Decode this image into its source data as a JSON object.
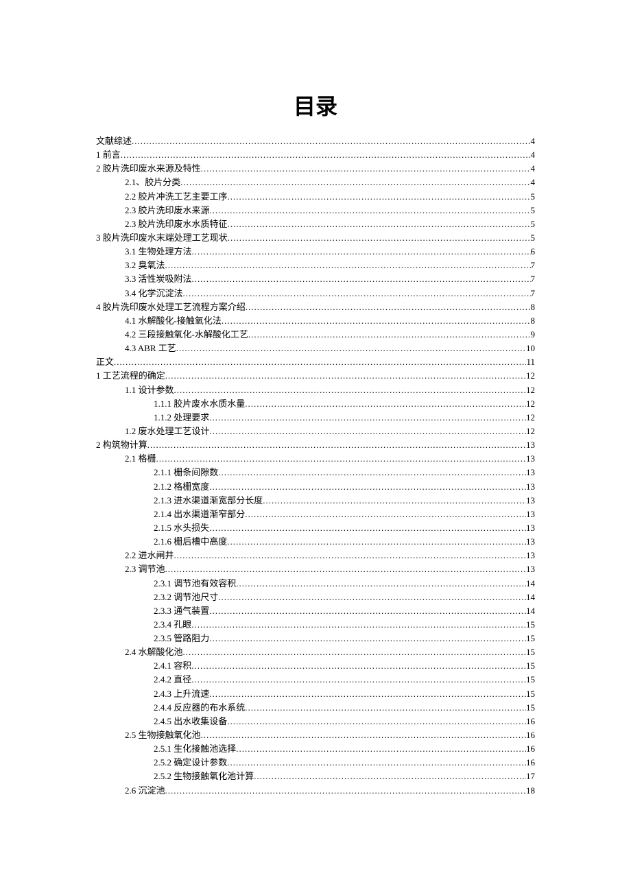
{
  "title": "目录",
  "dots": ".................................................................................................................................................................................................................................",
  "entries": [
    {
      "label": "文献综述",
      "page": "4",
      "indent": 0
    },
    {
      "label": "1 前言",
      "page": "4",
      "indent": 0
    },
    {
      "label": "2 胶片洗印废水来源及特性",
      "page": "4",
      "indent": 0
    },
    {
      "label": "2.1、胶片分类",
      "page": "4",
      "indent": 1
    },
    {
      "label": "2.2 胶片冲洗工艺主要工序",
      "page": "5",
      "indent": 1
    },
    {
      "label": "2.3 胶片洗印废水来源",
      "page": "5",
      "indent": 1
    },
    {
      "label": "2.3 胶片洗印废水水质特征",
      "page": "5",
      "indent": 1
    },
    {
      "label": "3 胶片洗印废水末端处理工艺现状",
      "page": "5",
      "indent": 0
    },
    {
      "label": "3.1 生物处理方法",
      "page": "6",
      "indent": 1
    },
    {
      "label": "3.2 臭氧法",
      "page": "7",
      "indent": 1
    },
    {
      "label": "3.3 活性炭吸附法",
      "page": "7",
      "indent": 1
    },
    {
      "label": "3.4 化学沉淀法",
      "page": "7",
      "indent": 1
    },
    {
      "label": "4  胶片洗印废水处理工艺流程方案介绍",
      "page": "8",
      "indent": 0
    },
    {
      "label": "4.1  水解酸化-接触氧化法 ",
      "page": "8",
      "indent": 1
    },
    {
      "label": "4.2 三段接触氧化-水解酸化工艺 ",
      "page": "9",
      "indent": 1
    },
    {
      "label": "4.3 ABR 工艺 ",
      "page": "10",
      "indent": 1
    },
    {
      "label": "正文",
      "page": "11",
      "indent": 0
    },
    {
      "label": "1 工艺流程的确定",
      "page": "12",
      "indent": 0
    },
    {
      "label": "1.1 设计参数",
      "page": "12",
      "indent": 1
    },
    {
      "label": "1.1.1 胶片废水水质水量",
      "page": "12",
      "indent": 2
    },
    {
      "label": "1.1.2 处理要求",
      "page": "12",
      "indent": 2
    },
    {
      "label": "1.2 废水处理工艺设计",
      "page": "12",
      "indent": 1
    },
    {
      "label": "2 构筑物计算",
      "page": "13",
      "indent": 0
    },
    {
      "label": "2.1 格栅",
      "page": "13",
      "indent": 1
    },
    {
      "label": "2.1.1 栅条间隙数",
      "page": "13",
      "indent": 2
    },
    {
      "label": "2.1.2 格栅宽度",
      "page": "13",
      "indent": 2
    },
    {
      "label": "2.1.3 进水渠道渐宽部分长度",
      "page": "13",
      "indent": 2
    },
    {
      "label": "2.1.4 出水渠道渐窄部分",
      "page": "13",
      "indent": 2
    },
    {
      "label": "2.1.5 水头损失",
      "page": "13",
      "indent": 2
    },
    {
      "label": "2.1.6 栅后槽中高度",
      "page": "13",
      "indent": 2
    },
    {
      "label": "2.2 进水闸井",
      "page": "13",
      "indent": 1
    },
    {
      "label": "2.3 调节池",
      "page": "13",
      "indent": 1
    },
    {
      "label": "2.3.1 调节池有效容积",
      "page": "14",
      "indent": 2
    },
    {
      "label": "2.3.2 调节池尺寸",
      "page": "14",
      "indent": 2
    },
    {
      "label": "2.3.3 通气装置",
      "page": "14",
      "indent": 2
    },
    {
      "label": "2.3.4 孔眼",
      "page": "15",
      "indent": 2
    },
    {
      "label": "2.3.5 管路阻力",
      "page": "15",
      "indent": 2
    },
    {
      "label": "2.4 水解酸化池",
      "page": "15",
      "indent": 1
    },
    {
      "label": "2.4.1 容积",
      "page": "15",
      "indent": 2
    },
    {
      "label": "2.4.2 直径",
      "page": "15",
      "indent": 2
    },
    {
      "label": "2.4.3 上升流速",
      "page": "15",
      "indent": 2
    },
    {
      "label": "2.4.4 反应器的布水系统",
      "page": "15",
      "indent": 2
    },
    {
      "label": "2.4.5 出水收集设备",
      "page": "16",
      "indent": 2
    },
    {
      "label": "2.5 生物接触氧化池",
      "page": "16",
      "indent": 1
    },
    {
      "label": "2.5.1 生化接触池选择",
      "page": "16",
      "indent": 2
    },
    {
      "label": "2.5.2 确定设计参数",
      "page": "16",
      "indent": 2
    },
    {
      "label": "2.5.2 生物接触氧化池计算",
      "page": "17",
      "indent": 2
    },
    {
      "label": "2.6 沉淀池",
      "page": "18",
      "indent": 1
    }
  ]
}
